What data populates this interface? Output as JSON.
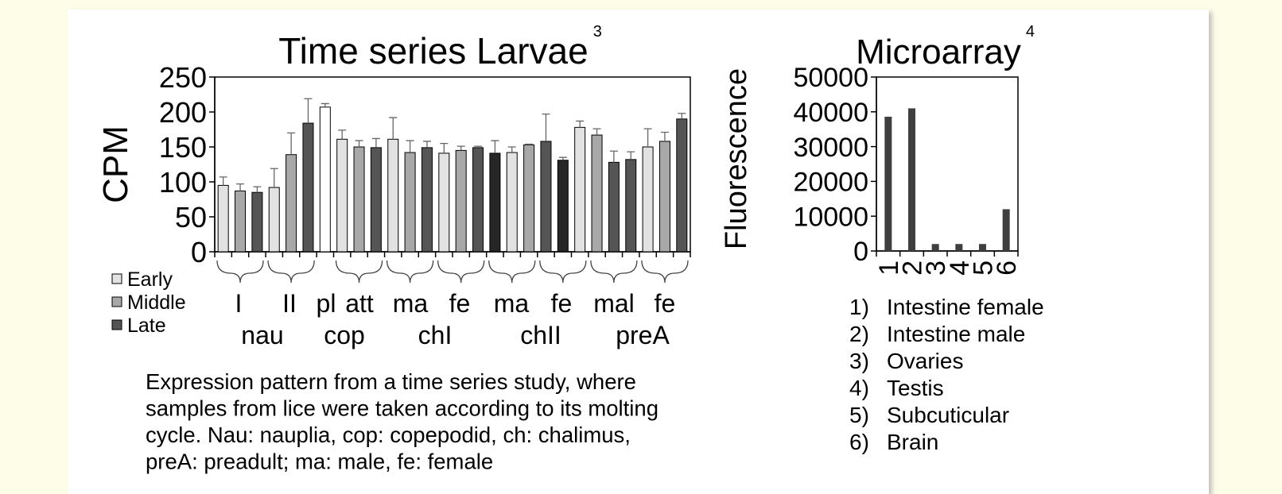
{
  "chart_data": [
    {
      "type": "bar",
      "title": "Time series Larvae",
      "title_note": "3",
      "y_label": "CPM",
      "ylim": [
        0,
        250
      ],
      "yticks": [
        0,
        50,
        100,
        150,
        200,
        250
      ],
      "values": [
        95,
        87,
        85,
        92,
        139,
        184,
        207,
        161,
        150,
        149,
        161,
        142,
        149,
        141,
        145,
        149,
        141,
        142,
        153,
        158,
        131,
        178,
        167,
        128,
        132,
        150,
        158,
        190
      ],
      "errors": [
        12,
        10,
        8,
        27,
        31,
        35,
        5,
        13,
        9,
        13,
        31,
        17,
        9,
        14,
        6,
        2,
        18,
        8,
        1,
        39,
        4,
        9,
        9,
        16,
        11,
        26,
        13,
        8
      ],
      "colors": [
        "#e2e2e2",
        "#a8a8a8",
        "#555555",
        "#e2e2e2",
        "#a8a8a8",
        "#555555",
        "#ffffff",
        "#e2e2e2",
        "#a8a8a8",
        "#555555",
        "#e2e2e2",
        "#a8a8a8",
        "#555555",
        "#e2e2e2",
        "#a8a8a8",
        "#555555",
        "#262626",
        "#e2e2e2",
        "#a8a8a8",
        "#555555",
        "#262626",
        "#e2e2e2",
        "#a8a8a8",
        "#555555",
        "#555555",
        "#e2e2e2",
        "#a8a8a8",
        "#555555"
      ],
      "legend": [
        {
          "name": "Early",
          "color": "#e2e2e2"
        },
        {
          "name": "Middle",
          "color": "#a8a8a8"
        },
        {
          "name": "Late",
          "color": "#555555"
        }
      ],
      "group_labels": [
        "I",
        "II",
        "pl",
        "att",
        "ma",
        "fe",
        "ma",
        "fe",
        "mal",
        "fe"
      ],
      "stage_labels": [
        "nau",
        "cop",
        "chI",
        "chII",
        "preA"
      ]
    },
    {
      "type": "bar",
      "title": "Microarray",
      "title_note": "4",
      "y_label": "Fluorescence",
      "categories": [
        "1",
        "2",
        "3",
        "4",
        "5",
        "6"
      ],
      "values": [
        38600,
        41000,
        2000,
        2000,
        2000,
        12000
      ],
      "color": "#3f3f3f",
      "ylim": [
        0,
        50000
      ],
      "yticks": [
        0,
        10000,
        20000,
        30000,
        40000,
        50000
      ]
    }
  ],
  "tissues": [
    {
      "number": "1)",
      "label": "Intestine female"
    },
    {
      "number": "2)",
      "label": "Intestine male"
    },
    {
      "number": "3)",
      "label": "Ovaries"
    },
    {
      "number": "4)",
      "label": "Testis"
    },
    {
      "number": "5)",
      "label": "Subcuticular"
    },
    {
      "number": "6)",
      "label": "Brain"
    }
  ],
  "caption_lines": [
    "Expression pattern from a time series study, where",
    "samples from lice were taken according to its molting",
    "cycle. Nau: nauplia, cop: copepodid, ch: chalimus,",
    "preA: preadult; ma: male, fe: female"
  ]
}
